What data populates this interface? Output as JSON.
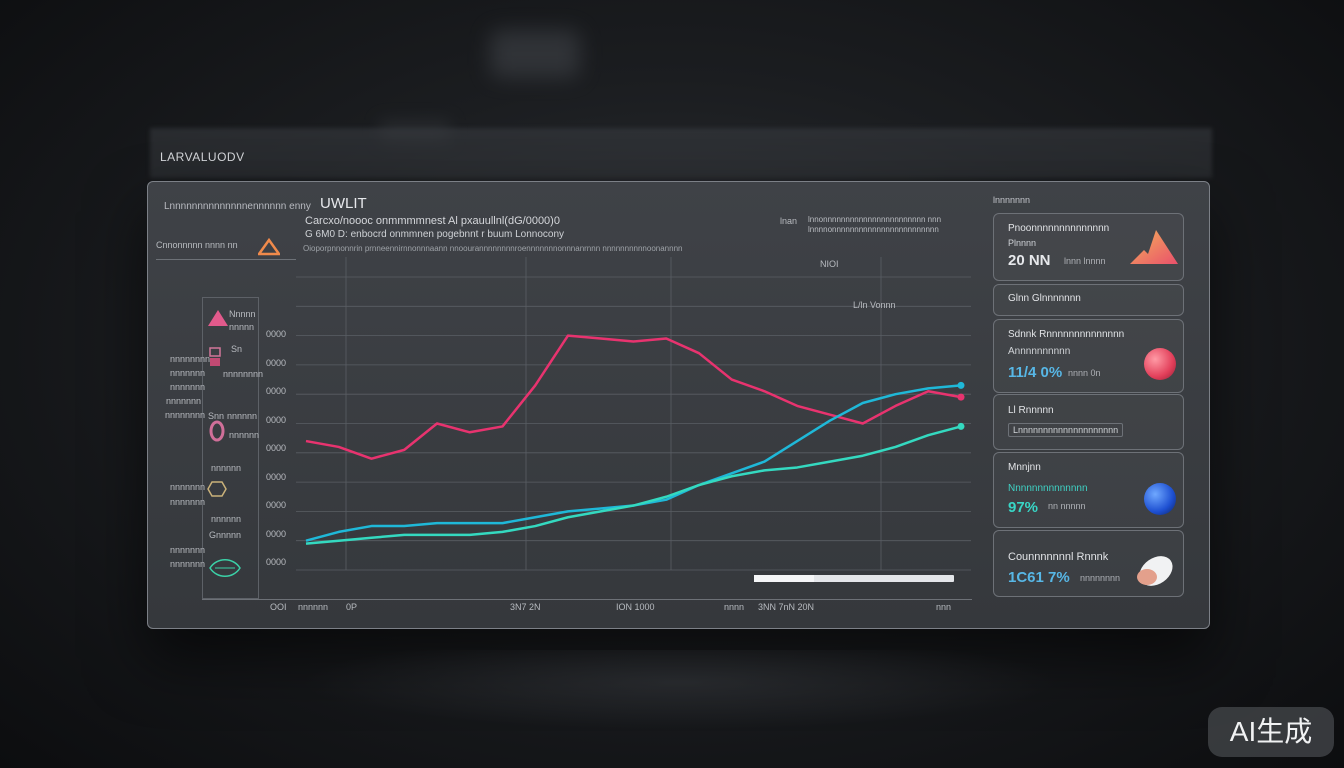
{
  "brand": "LARVALUODV",
  "panel": {
    "title": "UWLIT",
    "subtitle1": "Carcxo/noooc onmmmmnest Al pxauullnl(dG/0000)0",
    "subtitle2": "G 6M0 D: enbocrd onmmnen pogebnnt r buum Lonnocony",
    "subtitle3": "Oioporpnnonnrin prnneennirnnonnnaann nnoourannnnnnnnroennnnnnnonnnanrnnn nnnnnnnnnnoonannnn",
    "left_header1": "Lnnnnnnnnnnnnnnennnnnn enny",
    "left_header2": "Cnnonnnnn nnnn nn",
    "top_right_code": "lnan",
    "top_right_text1": "lnnonnnnnnnnnnnnnnnnnnnnnnn nnn",
    "top_right_text2": "lnnnnonnnnnnnnnnnnnnnnnnnnnnnn",
    "chart_label_nl": "NIOI",
    "chart_label_ll": "L/ln Vonnn",
    "legend": [
      {
        "label": "Nnnnn",
        "label2": "nnnnn",
        "icon": "triangle-icon"
      },
      {
        "label": "Sn",
        "label2": "nnnnnnnn",
        "icon": "square-icon"
      },
      {
        "label": "Snn",
        "label2": "nnnnnn",
        "icon": "ring-icon"
      },
      {
        "label": "nnnnnn",
        "label2": "nnnnnn",
        "icon": "hexagon-icon"
      },
      {
        "label": "Gnnnnn",
        "label2": "",
        "icon": "leaf-icon"
      }
    ],
    "side_labels": [
      "nnnnnnnn",
      "nnnnnnn",
      "nnnnnnn",
      "nnnnnnn",
      "nnnnnnnn",
      "nnnnnnn",
      "nnnnnnn",
      "nnnnnnn",
      "nnnnnnn"
    ],
    "y_ticks": [
      "0000",
      "0000",
      "0000",
      "0000",
      "0000",
      "0000",
      "0000",
      "0000",
      "0000"
    ],
    "x_ticks": [
      "OOI",
      "nnnnnn",
      "0P",
      "3N7 2N",
      "ION 1000",
      "nnnn",
      "3NN 7nN 20N",
      "nnn"
    ],
    "progress_value": 0.3
  },
  "right_panel": {
    "title": "lnnnnnnn",
    "cards": [
      {
        "title": "Pnoonnnnnnnnnnnnnn",
        "subtitle": "Plnnnn",
        "value": "20 NN",
        "unit": "lnnn lnnnn",
        "value_color": "#e6e8eb",
        "icon": "mountain-icon"
      },
      {
        "title": "Glnn Glnnnnnnn",
        "subtitle": "",
        "value": "",
        "unit": "",
        "value_color": "#e6e8eb",
        "icon": ""
      },
      {
        "title": "Sdnnk Rnnnnnnnnnnnnnn",
        "subtitle": "Annnnnnnnnn",
        "value": "11/4 0%",
        "unit": "nnnn 0n",
        "value_color": "#57b7e6",
        "icon": "red-sphere-icon"
      },
      {
        "title": "Ll Rnnnnn",
        "subtitle": "Lnnnnnnnnnnnnnnnnnnnn",
        "value": "",
        "unit": "",
        "value_color": "#e6e8eb",
        "icon": ""
      },
      {
        "title": "Mnnjnn",
        "subtitle": "Nnnnnnnnnnnnnn",
        "value": "97%",
        "unit": "nn nnnnn",
        "value_color": "#38d6c6",
        "icon": "blue-sphere-icon"
      },
      {
        "title": "Counnnnnnnl Rnnnk",
        "subtitle": "",
        "value": "1C61 7%",
        "unit": "nnnnnnnn",
        "value_color": "#57b7e6",
        "icon": "pill-icon"
      }
    ]
  },
  "watermark": "AI生成",
  "chart_data": {
    "type": "line",
    "x": [
      0,
      1,
      2,
      3,
      4,
      5,
      6,
      7,
      8,
      9,
      10,
      11,
      12,
      13,
      14,
      15,
      16,
      17,
      18,
      19,
      20
    ],
    "ylim": [
      0,
      10
    ],
    "xlim": [
      0,
      20
    ],
    "grid": true,
    "series": [
      {
        "color": "#e8336f",
        "values": [
          4.4,
          4.2,
          3.8,
          4.1,
          5.0,
          4.7,
          4.9,
          6.3,
          8.0,
          7.9,
          7.8,
          7.9,
          7.4,
          6.5,
          6.1,
          5.6,
          5.3,
          5.0,
          5.6,
          6.1,
          5.9
        ]
      },
      {
        "color": "#1fb8d8",
        "values": [
          1.0,
          1.3,
          1.5,
          1.5,
          1.6,
          1.6,
          1.6,
          1.8,
          2.0,
          2.1,
          2.2,
          2.4,
          2.9,
          3.3,
          3.7,
          4.4,
          5.1,
          5.7,
          6.0,
          6.2,
          6.3
        ]
      },
      {
        "color": "#34d9c0",
        "values": [
          0.9,
          1.0,
          1.1,
          1.2,
          1.2,
          1.2,
          1.3,
          1.5,
          1.8,
          2.0,
          2.2,
          2.5,
          2.9,
          3.2,
          3.4,
          3.5,
          3.7,
          3.9,
          4.2,
          4.6,
          4.9
        ]
      }
    ]
  }
}
